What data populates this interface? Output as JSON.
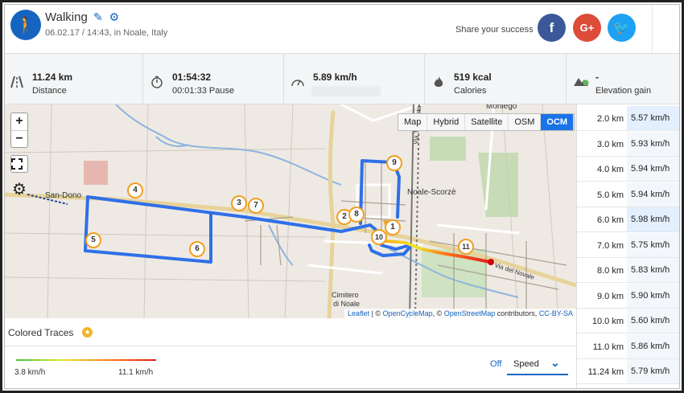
{
  "activity": {
    "icon": "walking-icon",
    "title": "Walking",
    "subtitle": "06.02.17 / 14:43, in Noale, Italy"
  },
  "share": {
    "label": "Share your success",
    "facebook": "f",
    "google": "G+",
    "twitter": "🐦"
  },
  "stats": [
    {
      "icon": "road-icon",
      "value": "11.24 km",
      "label": "Distance"
    },
    {
      "icon": "stopwatch-icon",
      "value": "01:54:32",
      "label": "00:01:33 Pause"
    },
    {
      "icon": "speedometer-icon",
      "value": "5.89 km/h",
      "label": ""
    },
    {
      "icon": "flame-icon",
      "value": "519 kcal",
      "label": "Calories"
    },
    {
      "icon": "mountain-icon",
      "value": "-",
      "label": "Elevation gain"
    }
  ],
  "map": {
    "zoom_in": "+",
    "zoom_out": "−",
    "fullscreen": "⛶",
    "settings": "⚙",
    "layers": [
      "Map",
      "Hybrid",
      "Satellite",
      "OSM",
      "OCM"
    ],
    "active_layer": "OCM",
    "place_labels": [
      "San Dono",
      "Moniego",
      "Noale-Scorzè",
      "Cimitero di Noale",
      "Via Tempesta",
      "Via del Novale"
    ],
    "markers": [
      "1",
      "2",
      "3",
      "4",
      "5",
      "6",
      "7",
      "8",
      "9",
      "10",
      "11"
    ],
    "attribution": {
      "leaflet": "Leaflet",
      "sep1": " | © ",
      "ocm": "OpenCycleMap",
      "sep2": ", © ",
      "osm": "OpenStreetMap",
      "sep3": " contributors, ",
      "license": "CC-BY-SA"
    }
  },
  "colored_traces": {
    "title": "Colored Traces",
    "min_label": "3.8 km/h",
    "max_label": "11.1 km/h",
    "off_label": "Off",
    "metric": "Speed",
    "colors": [
      "#3ec23e",
      "#e8e82a",
      "#ff7a1a",
      "#e31a1a"
    ]
  },
  "splits": [
    {
      "distance": "2.0 km",
      "speed": "5.57 km/h"
    },
    {
      "distance": "3.0 km",
      "speed": "5.93 km/h"
    },
    {
      "distance": "4.0 km",
      "speed": "5.94 km/h"
    },
    {
      "distance": "5.0 km",
      "speed": "5.94 km/h"
    },
    {
      "distance": "6.0 km",
      "speed": "5.98 km/h"
    },
    {
      "distance": "7.0 km",
      "speed": "5.75 km/h"
    },
    {
      "distance": "8.0 km",
      "speed": "5.83 km/h"
    },
    {
      "distance": "9.0 km",
      "speed": "5.90 km/h"
    },
    {
      "distance": "10.0 km",
      "speed": "5.60 km/h"
    },
    {
      "distance": "11.0 km",
      "speed": "5.86 km/h"
    },
    {
      "distance": "11.24 km",
      "speed": "5.79 km/h"
    }
  ],
  "highlighted_splits": [
    0,
    4
  ]
}
